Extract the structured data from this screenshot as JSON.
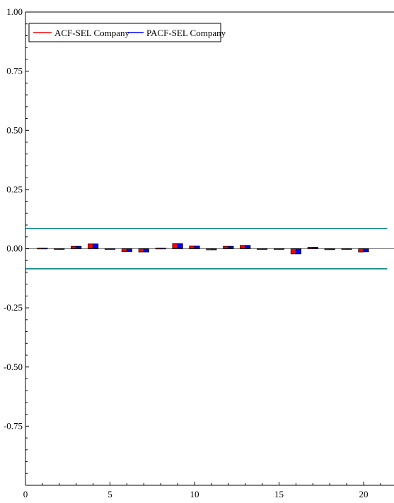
{
  "chart_data": {
    "type": "bar",
    "title": "",
    "xlabel": "",
    "ylabel": "",
    "xlim": [
      0,
      21.8
    ],
    "ylim": [
      -1.0,
      1.0
    ],
    "x_ticks": [
      0,
      5,
      10,
      15,
      20
    ],
    "y_ticks": [
      1.0,
      0.75,
      0.5,
      0.25,
      0.0,
      -0.25,
      -0.5,
      -0.75
    ],
    "x_tick_labels": [
      "0",
      "5",
      "10",
      "15",
      "20"
    ],
    "y_tick_labels": [
      "1.00",
      "0.75",
      "0.50",
      "0.25",
      "0.00",
      "-0.25",
      "-0.50",
      "-0.75"
    ],
    "lags": [
      1,
      2,
      3,
      4,
      5,
      6,
      7,
      8,
      9,
      10,
      11,
      12,
      13,
      14,
      15,
      16,
      17,
      18,
      19,
      20
    ],
    "series": [
      {
        "name": "ACF-SEL Company",
        "color": "#ff0000",
        "values": [
          0.002,
          -0.003,
          0.01,
          0.02,
          -0.002,
          -0.012,
          -0.014,
          0.002,
          0.021,
          0.011,
          -0.005,
          0.01,
          0.014,
          -0.002,
          -0.002,
          -0.022,
          0.006,
          -0.004,
          -0.002,
          -0.014
        ]
      },
      {
        "name": "PACF-SEL Company",
        "color": "#0000ff",
        "values": [
          0.002,
          -0.003,
          0.01,
          0.02,
          -0.002,
          -0.012,
          -0.014,
          0.002,
          0.021,
          0.011,
          -0.005,
          0.01,
          0.014,
          -0.002,
          -0.002,
          -0.022,
          0.006,
          -0.004,
          -0.002,
          -0.013
        ]
      }
    ],
    "confidence_band": {
      "upper": 0.085,
      "lower": -0.085,
      "color": "#008080"
    },
    "zero_line_color": "#808080",
    "legend": {
      "placement": "top-left"
    },
    "grid": false
  }
}
